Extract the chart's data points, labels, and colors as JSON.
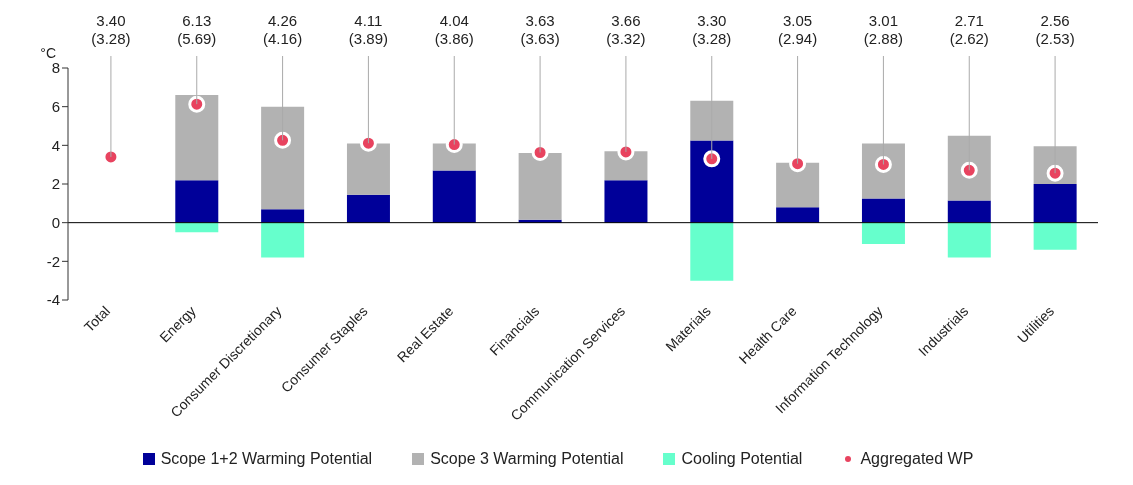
{
  "chart_data": {
    "type": "bar",
    "stacked": true,
    "ylabel": "°C",
    "categories": [
      "Total",
      "Energy",
      "Consumer Discretionary",
      "Consumer Staples",
      "Real Estate",
      "Financials",
      "Communication Services",
      "Materials",
      "Health Care",
      "Information Technology",
      "Industrials",
      "Utilities"
    ],
    "series": [
      {
        "name": "Scope 1+2 Warming Potential",
        "color": "#000099",
        "values": [
          null,
          2.2,
          0.7,
          1.45,
          2.7,
          0.15,
          2.2,
          4.25,
          0.8,
          1.25,
          1.15,
          2.0
        ]
      },
      {
        "name": "Scope 3 Warming Potential",
        "color": "#b2b2b2",
        "values": [
          null,
          4.4,
          5.3,
          2.65,
          1.4,
          3.45,
          1.5,
          2.05,
          2.3,
          2.85,
          3.35,
          1.95
        ]
      },
      {
        "name": "Cooling Potential",
        "color": "#66ffcc",
        "values": [
          null,
          -0.5,
          -1.8,
          0,
          0,
          0,
          0,
          -3.0,
          0,
          -1.1,
          -1.8,
          -1.4
        ]
      },
      {
        "name": "Aggregated WP",
        "type": "scatter",
        "color": "#e8435f",
        "values": [
          3.4,
          6.13,
          4.26,
          4.11,
          4.04,
          3.63,
          3.66,
          3.3,
          3.05,
          3.01,
          2.71,
          2.56
        ],
        "value_labels": [
          "3.40\n(3.28)",
          "6.13\n(5.69)",
          "4.26\n(4.16)",
          "4.11\n(3.89)",
          "4.04\n(3.86)",
          "3.63\n(3.63)",
          "3.66\n(3.32)",
          "3.30\n(3.28)",
          "3.05\n(2.94)",
          "3.01\n(2.88)",
          "2.71\n(2.62)",
          "2.56\n(2.53)"
        ]
      }
    ],
    "ylim": [
      -4,
      8
    ],
    "yticks": [
      -4,
      -2,
      0,
      2,
      4,
      6,
      8
    ],
    "legend": "bottom",
    "marker": "circle"
  }
}
